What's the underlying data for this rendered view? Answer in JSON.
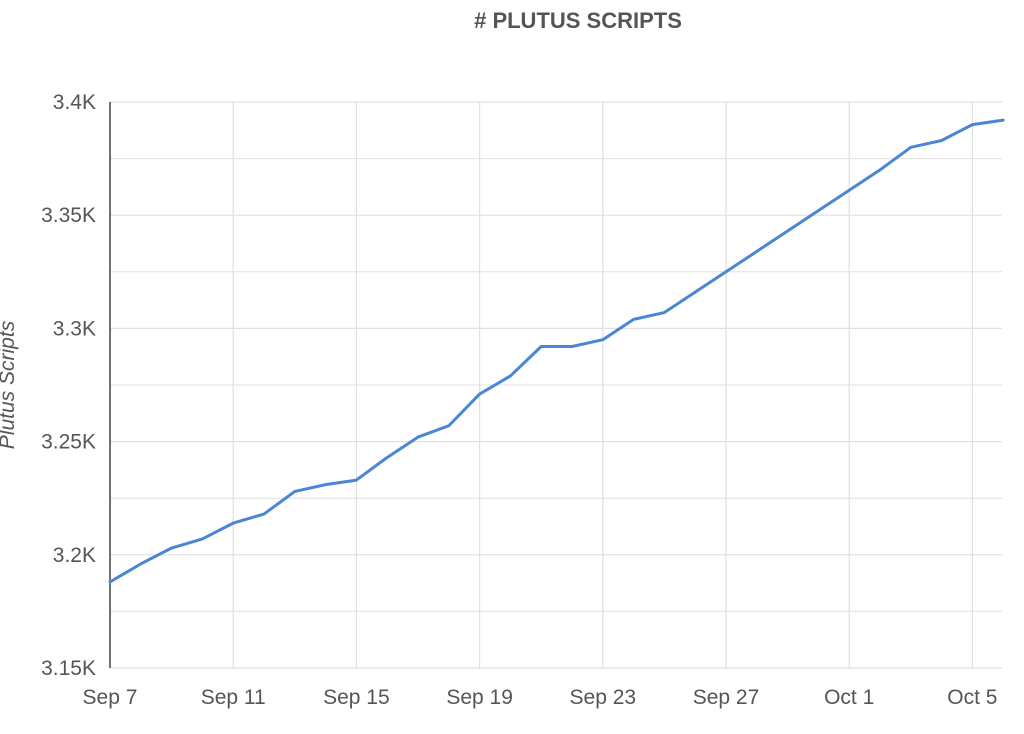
{
  "chart_data": {
    "type": "line",
    "title": "# PLUTUS SCRIPTS",
    "xlabel": "",
    "ylabel": "Plutus Scripts",
    "x": [
      "Sep 7",
      "Sep 8",
      "Sep 9",
      "Sep 10",
      "Sep 11",
      "Sep 12",
      "Sep 13",
      "Sep 14",
      "Sep 15",
      "Sep 16",
      "Sep 17",
      "Sep 18",
      "Sep 19",
      "Sep 20",
      "Sep 21",
      "Sep 22",
      "Sep 23",
      "Sep 24",
      "Sep 25",
      "Sep 26",
      "Sep 27",
      "Sep 28",
      "Sep 29",
      "Sep 30",
      "Oct 1",
      "Oct 2",
      "Oct 3",
      "Oct 4",
      "Oct 5",
      "Oct 6"
    ],
    "series": [
      {
        "values": [
          3188,
          3196,
          3203,
          3207,
          3214,
          3218,
          3228,
          3231,
          3233,
          3243,
          3252,
          3257,
          3271,
          3279,
          3292,
          3292,
          3295,
          3304,
          3307,
          3316,
          3325,
          3334,
          3343,
          3352,
          3361,
          3370,
          3380,
          3383,
          3390,
          3392
        ]
      }
    ],
    "x_tick_labels": [
      "Sep 7",
      "Sep 11",
      "Sep 15",
      "Sep 19",
      "Sep 23",
      "Sep 27",
      "Oct 1",
      "Oct 5"
    ],
    "y_tick_labels": [
      "3.15K",
      "3.2K",
      "3.25K",
      "3.3K",
      "3.35K",
      "3.4K"
    ],
    "y_ticks": [
      3150,
      3200,
      3250,
      3300,
      3350,
      3400
    ],
    "ylim": [
      3150,
      3400
    ],
    "grid": true,
    "legend": "none",
    "colors": {
      "line": "#4a86d4",
      "grid": "#e0e0e0",
      "axis": "#444444",
      "text": "#555555"
    }
  }
}
